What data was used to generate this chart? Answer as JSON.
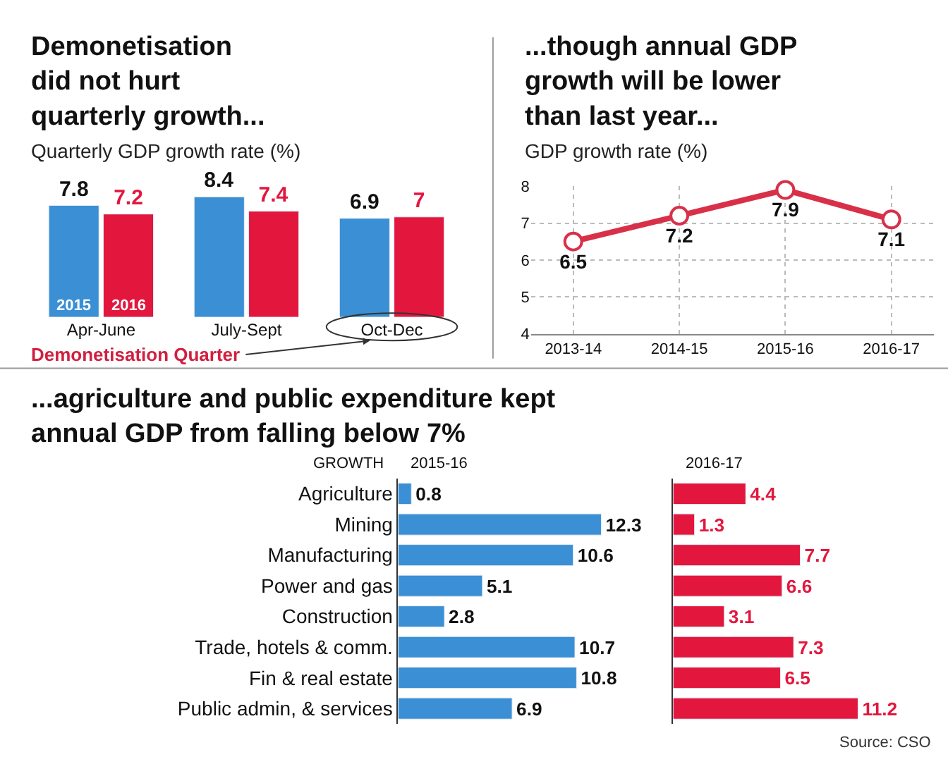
{
  "chart_data": [
    {
      "type": "bar",
      "title": "Demonetisation\ndid not hurt\nquarterly growth...",
      "subtitle": "Quarterly GDP growth rate (%)",
      "categories": [
        "Apr-June",
        "July-Sept",
        "Oct-Dec"
      ],
      "series": [
        {
          "name": "2015",
          "color": "#3b8fd4",
          "values": [
            7.8,
            8.4,
            6.9
          ]
        },
        {
          "name": "2016",
          "color": "#e3173e",
          "values": [
            7.2,
            7.4,
            7
          ]
        }
      ],
      "data_labels": true,
      "annotations": [
        "Demonetisation Quarter"
      ]
    },
    {
      "type": "line",
      "title": "...though annual GDP\ngrowth will be lower\nthan last year...",
      "subtitle": "GDP growth rate (%)",
      "categories": [
        "2013-14",
        "2014-15",
        "2015-16",
        "2016-17"
      ],
      "series": [
        {
          "color": "#d9304a",
          "values": [
            6.5,
            7.2,
            7.9,
            7.1
          ]
        }
      ],
      "ylim": [
        4,
        8
      ],
      "yticks": [
        4,
        5,
        6,
        7,
        8
      ],
      "grid": true,
      "marker": "circle",
      "data_labels": true
    },
    {
      "type": "bar",
      "orientation": "horizontal",
      "title": "...agriculture and public expenditure kept\nannual GDP from falling below 7%",
      "ylabel": "GROWTH",
      "categories": [
        "Agriculture",
        "Mining",
        "Manufacturing",
        "Power and gas",
        "Construction",
        "Trade, hotels & comm.",
        "Fin & real estate",
        "Public admin, & services"
      ],
      "series": [
        {
          "name": "2015-16",
          "color": "#3b8fd4",
          "values": [
            0.8,
            12.3,
            10.6,
            5.1,
            2.8,
            10.7,
            10.8,
            6.9
          ]
        }
      ],
      "data_labels": true
    },
    {
      "type": "bar",
      "orientation": "horizontal",
      "categories": [
        null,
        null,
        null,
        null,
        null,
        null,
        null,
        null
      ],
      "series": [
        {
          "name": "2016-17",
          "color": "#e3173e",
          "values": [
            4.4,
            1.3,
            7.7,
            6.6,
            3.1,
            7.3,
            6.5,
            11.2
          ]
        }
      ],
      "data_labels": true,
      "annotations": [
        "Source: CSO"
      ]
    }
  ]
}
